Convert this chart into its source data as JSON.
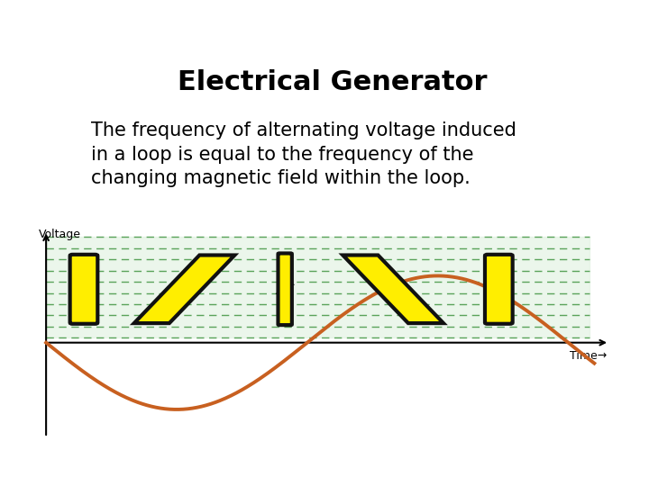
{
  "title": "Electrical Generator",
  "subtitle_lines": [
    "The frequency of alternating voltage induced",
    "in a loop is equal to the frequency of the",
    "changing magnetic field within the loop."
  ],
  "title_fontsize": 22,
  "subtitle_fontsize": 15,
  "background_color": "#ffffff",
  "sine_color": "#c86020",
  "sine_linewidth": 2.8,
  "axis_color": "#000000",
  "dashes_color": "#4a9a4a",
  "dashes_bg_color": "#dff0df",
  "loop_color": "#ffee00",
  "loop_edge_color": "#111111",
  "loop_linewidth": 3.0,
  "voltage_label": "Voltage",
  "time_label": "Time",
  "loop_positions_x": [
    0.15,
    0.55,
    0.95,
    1.38,
    1.8
  ],
  "loop_rotations": [
    0,
    45,
    90,
    135,
    180
  ]
}
